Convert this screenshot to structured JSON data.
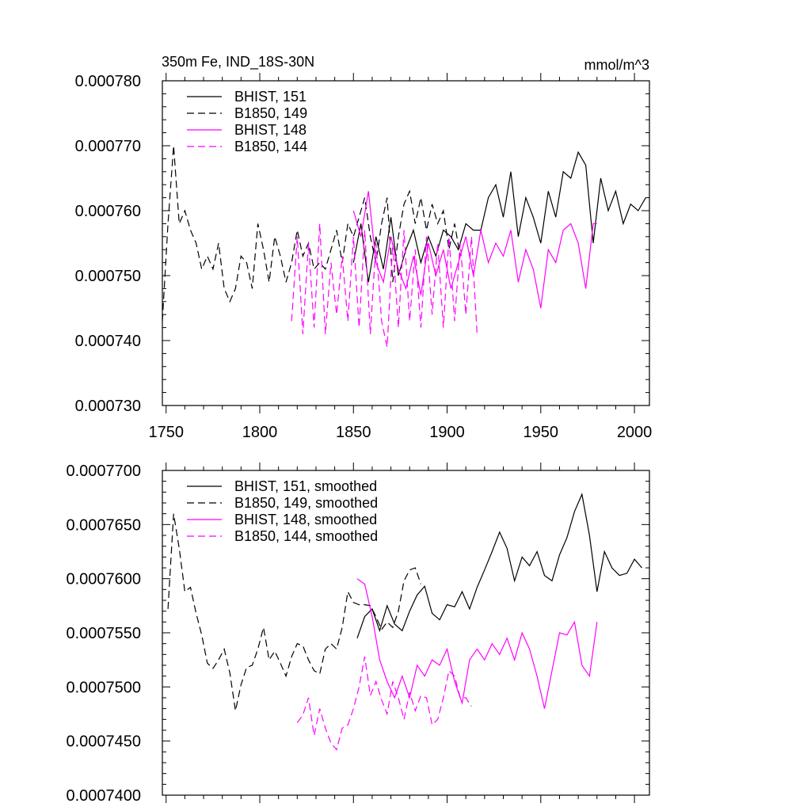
{
  "chart_data": [
    {
      "type": "line",
      "title": "350m Fe, IND_18S-30N",
      "units": "mmol/m^3",
      "xlim": [
        1748,
        2008
      ],
      "ylim": [
        0.00073,
        0.00078
      ],
      "xticks": [
        1750,
        1800,
        1850,
        1900,
        1950,
        2000
      ],
      "xtick_labels": [
        "1750",
        "1800",
        "1850",
        "1900",
        "1950",
        "2000"
      ],
      "yticks": [
        0.00073,
        0.00074,
        0.00075,
        0.00076,
        0.00077,
        0.00078
      ],
      "ytick_labels": [
        "0.000730",
        "0.000740",
        "0.000750",
        "0.000760",
        "0.000770",
        "0.000780"
      ],
      "legend_position": "top-left",
      "series": [
        {
          "name": "BHIST, 151",
          "color": "#000000",
          "dash": "solid",
          "x": [
            1850,
            1854,
            1858,
            1862,
            1866,
            1870,
            1874,
            1878,
            1882,
            1886,
            1890,
            1894,
            1898,
            1902,
            1906,
            1910,
            1914,
            1918,
            1922,
            1926,
            1930,
            1934,
            1938,
            1942,
            1946,
            1950,
            1954,
            1958,
            1962,
            1966,
            1970,
            1974,
            1978,
            1982,
            1986,
            1990,
            1994,
            1998,
            2002,
            2006
          ],
          "y": [
            0.000752,
            0.000758,
            0.000749,
            0.000756,
            0.000751,
            0.000759,
            0.00075,
            0.000754,
            0.000757,
            0.000752,
            0.000756,
            0.000753,
            0.000757,
            0.000756,
            0.000754,
            0.000758,
            0.000757,
            0.000757,
            0.000762,
            0.000764,
            0.000759,
            0.000766,
            0.000756,
            0.000762,
            0.000759,
            0.000755,
            0.000763,
            0.000759,
            0.000766,
            0.000765,
            0.000769,
            0.000767,
            0.000755,
            0.000765,
            0.00076,
            0.000763,
            0.000758,
            0.000761,
            0.00076,
            0.000762
          ]
        },
        {
          "name": "B1850, 149",
          "color": "#000000",
          "dash": "dashed",
          "x": [
            1748,
            1751,
            1754,
            1757,
            1760,
            1763,
            1766,
            1769,
            1772,
            1775,
            1778,
            1781,
            1784,
            1787,
            1790,
            1793,
            1796,
            1799,
            1802,
            1805,
            1808,
            1811,
            1814,
            1817,
            1820,
            1823,
            1826,
            1829,
            1832,
            1835,
            1838,
            1841,
            1844,
            1847,
            1850,
            1853,
            1856,
            1859,
            1862,
            1865,
            1868,
            1871,
            1874,
            1877,
            1880,
            1883,
            1886,
            1889,
            1892,
            1895,
            1898,
            1901,
            1904,
            1907
          ],
          "y": [
            0.000743,
            0.000758,
            0.00077,
            0.000758,
            0.00076,
            0.000757,
            0.000755,
            0.000751,
            0.000753,
            0.000751,
            0.000755,
            0.000748,
            0.000746,
            0.000748,
            0.000753,
            0.000752,
            0.000748,
            0.000758,
            0.000754,
            0.000749,
            0.000756,
            0.000753,
            0.000749,
            0.000752,
            0.000757,
            0.000753,
            0.000755,
            0.000751,
            0.000752,
            0.000751,
            0.000754,
            0.000757,
            0.000752,
            0.000758,
            0.000756,
            0.000759,
            0.000762,
            0.000756,
            0.000752,
            0.000758,
            0.000762,
            0.000749,
            0.000756,
            0.000761,
            0.000763,
            0.000758,
            0.000762,
            0.000757,
            0.000761,
            0.000758,
            0.00076,
            0.000754,
            0.000758,
            0.000753
          ]
        },
        {
          "name": "BHIST, 148",
          "color": "#ff00ff",
          "dash": "solid",
          "x": [
            1850,
            1854,
            1858,
            1862,
            1866,
            1870,
            1874,
            1878,
            1882,
            1886,
            1890,
            1894,
            1898,
            1902,
            1906,
            1910,
            1914,
            1918,
            1922,
            1926,
            1930,
            1934,
            1938,
            1942,
            1946,
            1950,
            1954,
            1958,
            1962,
            1966,
            1970,
            1974,
            1978,
            1980
          ],
          "y": [
            0.00076,
            0.000756,
            0.000763,
            0.000752,
            0.000749,
            0.000756,
            0.000751,
            0.000748,
            0.000753,
            0.000747,
            0.000755,
            0.00075,
            0.000754,
            0.000748,
            0.000752,
            0.000756,
            0.00075,
            0.000757,
            0.000752,
            0.000755,
            0.000753,
            0.000757,
            0.000749,
            0.000754,
            0.000751,
            0.000745,
            0.000754,
            0.000752,
            0.000757,
            0.000758,
            0.000755,
            0.000748,
            0.000758,
            0.000758
          ]
        },
        {
          "name": "B1850, 144",
          "color": "#ff00ff",
          "dash": "dashed",
          "x": [
            1817,
            1820,
            1823,
            1826,
            1829,
            1832,
            1835,
            1838,
            1841,
            1844,
            1847,
            1850,
            1853,
            1856,
            1859,
            1862,
            1865,
            1868,
            1871,
            1874,
            1877,
            1880,
            1883,
            1886,
            1889,
            1892,
            1895,
            1898,
            1901,
            1904,
            1907,
            1910,
            1913,
            1916
          ],
          "y": [
            0.000743,
            0.000756,
            0.000741,
            0.000755,
            0.000742,
            0.000758,
            0.000741,
            0.000752,
            0.000744,
            0.000753,
            0.000743,
            0.000756,
            0.000742,
            0.000757,
            0.000741,
            0.000755,
            0.000743,
            0.000739,
            0.000755,
            0.000742,
            0.000757,
            0.000743,
            0.000754,
            0.000742,
            0.000756,
            0.000744,
            0.000755,
            0.000742,
            0.000756,
            0.000743,
            0.000755,
            0.000744,
            0.000756,
            0.000741
          ]
        }
      ]
    },
    {
      "type": "line",
      "xlim": [
        1748,
        2008
      ],
      "ylim": [
        0.00074,
        0.00077
      ],
      "xticks": [
        1750,
        1800,
        1850,
        1900,
        1950,
        2000
      ],
      "yticks": [
        0.00074,
        0.000745,
        0.00075,
        0.000755,
        0.00076,
        0.000765,
        0.00077
      ],
      "ytick_labels": [
        "0.0007400",
        "0.0007450",
        "0.0007500",
        "0.0007550",
        "0.0007600",
        "0.0007650",
        "0.0007700"
      ],
      "legend_position": "top-left",
      "series": [
        {
          "name": "BHIST, 151, smoothed",
          "color": "#000000",
          "dash": "solid",
          "x": [
            1852,
            1856,
            1860,
            1864,
            1868,
            1872,
            1876,
            1880,
            1884,
            1888,
            1892,
            1896,
            1900,
            1904,
            1908,
            1912,
            1916,
            1920,
            1924,
            1928,
            1932,
            1936,
            1940,
            1944,
            1948,
            1952,
            1956,
            1960,
            1964,
            1968,
            1972,
            1976,
            1980,
            1984,
            1988,
            1992,
            1996,
            2000,
            2004
          ],
          "y": [
            0.0007545,
            0.0007565,
            0.0007572,
            0.0007552,
            0.0007575,
            0.0007558,
            0.0007552,
            0.000757,
            0.0007585,
            0.0007593,
            0.0007568,
            0.0007562,
            0.0007576,
            0.0007574,
            0.0007588,
            0.0007572,
            0.0007592,
            0.0007608,
            0.0007625,
            0.0007643,
            0.0007628,
            0.0007598,
            0.000762,
            0.0007612,
            0.0007625,
            0.0007603,
            0.0007598,
            0.0007622,
            0.0007638,
            0.0007662,
            0.0007678,
            0.000764,
            0.0007588,
            0.0007625,
            0.000761,
            0.0007603,
            0.0007605,
            0.0007618,
            0.000761
          ]
        },
        {
          "name": "B1850, 149, smoothed",
          "color": "#000000",
          "dash": "dashed",
          "x": [
            1751,
            1754,
            1757,
            1760,
            1763,
            1766,
            1769,
            1772,
            1775,
            1778,
            1781,
            1784,
            1787,
            1790,
            1793,
            1796,
            1799,
            1802,
            1805,
            1808,
            1811,
            1814,
            1817,
            1820,
            1823,
            1826,
            1829,
            1832,
            1835,
            1838,
            1841,
            1844,
            1847,
            1850,
            1853,
            1856,
            1859,
            1862,
            1865,
            1868,
            1871,
            1874,
            1877,
            1880,
            1883,
            1886
          ],
          "y": [
            0.0007572,
            0.000766,
            0.0007628,
            0.0007588,
            0.0007592,
            0.0007568,
            0.0007548,
            0.0007522,
            0.0007517,
            0.0007525,
            0.0007535,
            0.0007513,
            0.0007478,
            0.0007502,
            0.0007518,
            0.000752,
            0.0007535,
            0.0007555,
            0.0007525,
            0.0007533,
            0.0007522,
            0.000751,
            0.0007528,
            0.000754,
            0.0007538,
            0.0007525,
            0.0007515,
            0.0007512,
            0.0007535,
            0.000754,
            0.0007535,
            0.0007555,
            0.0007588,
            0.0007578,
            0.0007576,
            0.0007576,
            0.0007575,
            0.0007565,
            0.0007553,
            0.000756,
            0.0007555,
            0.000757,
            0.0007598,
            0.0007608,
            0.000761,
            0.0007595
          ]
        },
        {
          "name": "BHIST, 148, smoothed",
          "color": "#ff00ff",
          "dash": "solid",
          "x": [
            1852,
            1856,
            1860,
            1864,
            1868,
            1872,
            1876,
            1880,
            1884,
            1888,
            1892,
            1896,
            1900,
            1904,
            1908,
            1912,
            1916,
            1920,
            1924,
            1928,
            1932,
            1936,
            1940,
            1944,
            1948,
            1952,
            1956,
            1960,
            1964,
            1968,
            1972,
            1976,
            1980
          ],
          "y": [
            0.00076,
            0.0007595,
            0.0007565,
            0.0007525,
            0.0007505,
            0.000749,
            0.000751,
            0.000749,
            0.000752,
            0.000751,
            0.0007525,
            0.000752,
            0.0007535,
            0.0007505,
            0.0007485,
            0.0007525,
            0.0007535,
            0.0007525,
            0.000754,
            0.000753,
            0.0007545,
            0.0007525,
            0.000755,
            0.0007535,
            0.000751,
            0.000748,
            0.0007515,
            0.000755,
            0.0007548,
            0.000756,
            0.000752,
            0.000751,
            0.000756
          ]
        },
        {
          "name": "B1850, 144, smoothed",
          "color": "#ff00ff",
          "dash": "dashed",
          "x": [
            1820,
            1823,
            1826,
            1829,
            1832,
            1835,
            1838,
            1841,
            1844,
            1847,
            1850,
            1853,
            1856,
            1859,
            1862,
            1865,
            1868,
            1871,
            1874,
            1877,
            1880,
            1883,
            1886,
            1889,
            1892,
            1895,
            1898,
            1901,
            1904,
            1907,
            1910,
            1913
          ],
          "y": [
            0.0007467,
            0.0007474,
            0.000749,
            0.0007455,
            0.000748,
            0.0007462,
            0.0007448,
            0.0007442,
            0.0007462,
            0.0007465,
            0.000748,
            0.00075,
            0.0007528,
            0.0007492,
            0.0007505,
            0.0007488,
            0.0007475,
            0.0007505,
            0.000749,
            0.000747,
            0.0007495,
            0.0007478,
            0.0007492,
            0.000749,
            0.0007465,
            0.000747,
            0.000749,
            0.0007515,
            0.000751,
            0.000749,
            0.000749,
            0.0007482
          ]
        }
      ]
    }
  ]
}
